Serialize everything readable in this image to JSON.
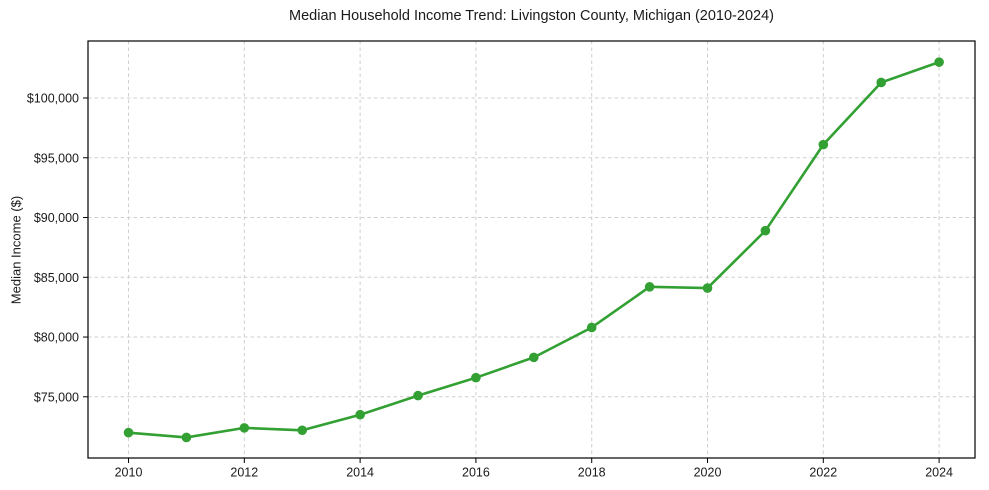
{
  "chart_data": {
    "type": "line",
    "title": "Median Household Income Trend: Livingston County, Michigan (2010-2024)",
    "xlabel": "",
    "ylabel": "Median Income ($)",
    "series": [
      {
        "name": "Median household income",
        "x": [
          2010,
          2011,
          2012,
          2013,
          2014,
          2015,
          2016,
          2017,
          2018,
          2019,
          2020,
          2021,
          2022,
          2023,
          2024
        ],
        "y": [
          72000,
          71600,
          72400,
          72200,
          73500,
          75100,
          76600,
          78300,
          80800,
          84200,
          84100,
          88900,
          96100,
          101300,
          103000
        ]
      }
    ],
    "xlim": [
      2009.3,
      2024.62
    ],
    "ylim": [
      69880,
      104770
    ],
    "xticks": {
      "values": [
        2010,
        2012,
        2014,
        2016,
        2018,
        2020,
        2022,
        2024
      ],
      "labels": [
        "2010",
        "2012",
        "2014",
        "2016",
        "2018",
        "2020",
        "2022",
        "2024"
      ]
    },
    "yticks": {
      "values": [
        75000,
        80000,
        85000,
        90000,
        95000,
        100000
      ],
      "labels": [
        "$75,000",
        "$80,000",
        "$85,000",
        "$90,000",
        "$95,000",
        "$100,000"
      ]
    },
    "grid": true,
    "grid_style": "dashed",
    "legend_position": "none",
    "marker": "circle",
    "colors": {
      "line": "#32a032",
      "marker": "#32a032",
      "grid": "#cfcfcf",
      "spine": "#000000",
      "text": "#1a1a1a",
      "background": "#ffffff"
    }
  }
}
